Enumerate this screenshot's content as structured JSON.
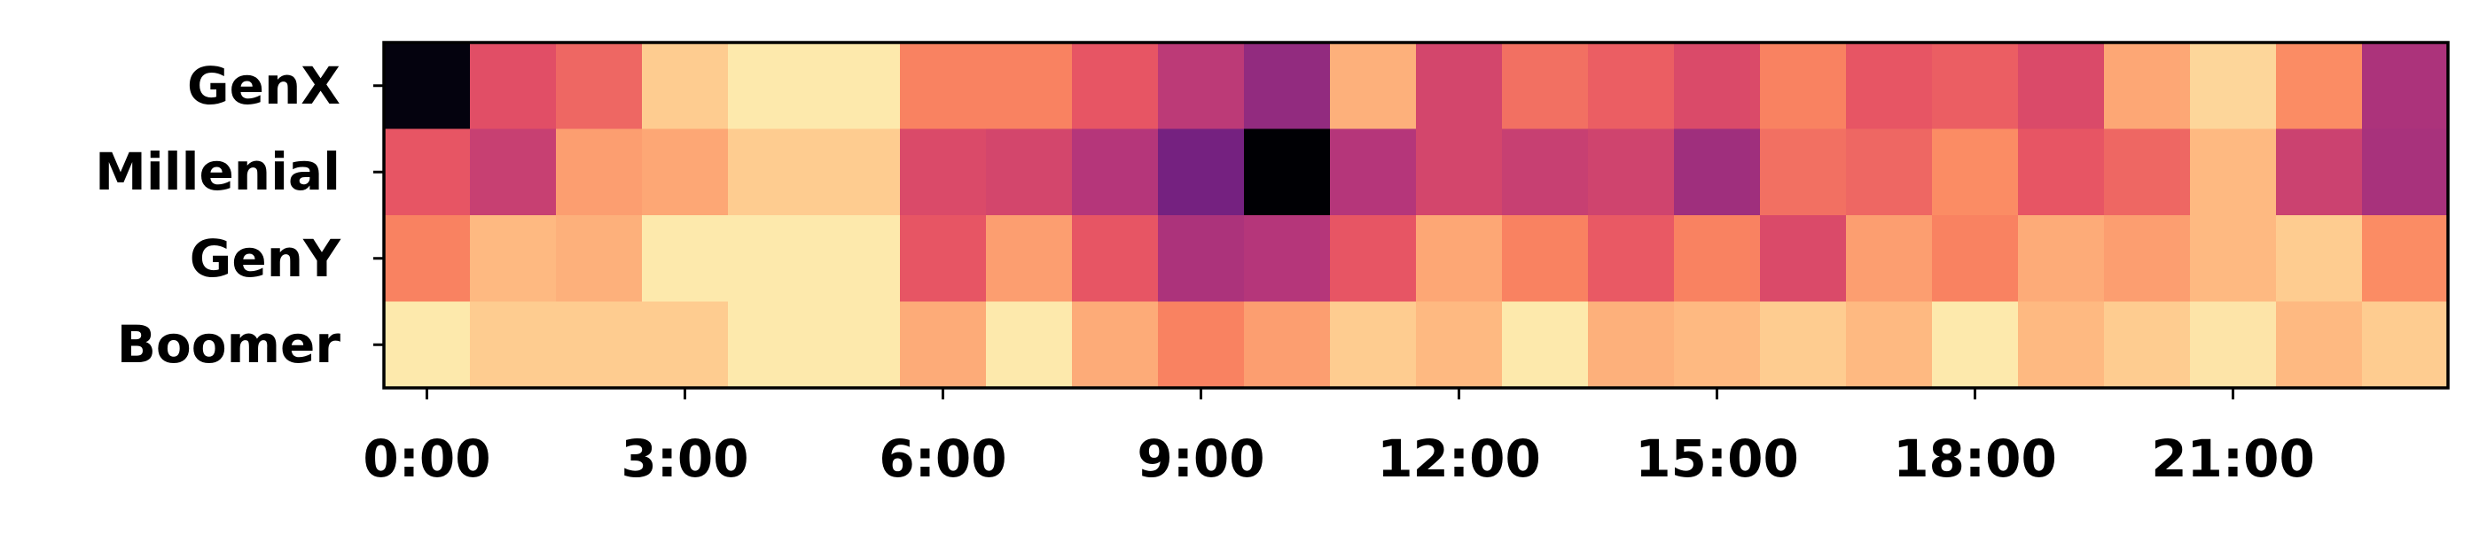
{
  "chart_data": {
    "type": "heatmap",
    "title": "",
    "xlabel": "",
    "ylabel": "",
    "colormap": "magma",
    "rows": [
      "GenX",
      "Millenial",
      "GenY",
      "Boomer"
    ],
    "hours": 24,
    "x_tick_labels": [
      "0:00",
      "3:00",
      "6:00",
      "9:00",
      "12:00",
      "15:00",
      "18:00",
      "21:00"
    ],
    "x_tick_hours": [
      0,
      3,
      6,
      9,
      12,
      15,
      18,
      21
    ],
    "values": [
      [
        0.02,
        0.62,
        0.68,
        0.9,
        0.96,
        0.96,
        0.74,
        0.74,
        0.64,
        0.52,
        0.42,
        0.84,
        0.58,
        0.7,
        0.66,
        0.6,
        0.74,
        0.64,
        0.66,
        0.6,
        0.82,
        0.92,
        0.76,
        0.48
      ],
      [
        0.64,
        0.55,
        0.8,
        0.82,
        0.9,
        0.9,
        0.6,
        0.58,
        0.5,
        0.35,
        0.0,
        0.5,
        0.58,
        0.55,
        0.57,
        0.45,
        0.7,
        0.68,
        0.76,
        0.64,
        0.68,
        0.86,
        0.56,
        0.47
      ],
      [
        0.74,
        0.86,
        0.84,
        0.96,
        0.96,
        0.96,
        0.64,
        0.8,
        0.64,
        0.48,
        0.5,
        0.64,
        0.82,
        0.74,
        0.65,
        0.74,
        0.6,
        0.8,
        0.74,
        0.83,
        0.8,
        0.86,
        0.9,
        0.76
      ],
      [
        0.96,
        0.9,
        0.9,
        0.9,
        0.96,
        0.96,
        0.83,
        0.96,
        0.83,
        0.74,
        0.8,
        0.9,
        0.86,
        0.96,
        0.84,
        0.86,
        0.9,
        0.86,
        0.96,
        0.86,
        0.9,
        0.95,
        0.86,
        0.9
      ]
    ]
  },
  "colors": {
    "frame": "#000000",
    "background": "#ffffff"
  }
}
